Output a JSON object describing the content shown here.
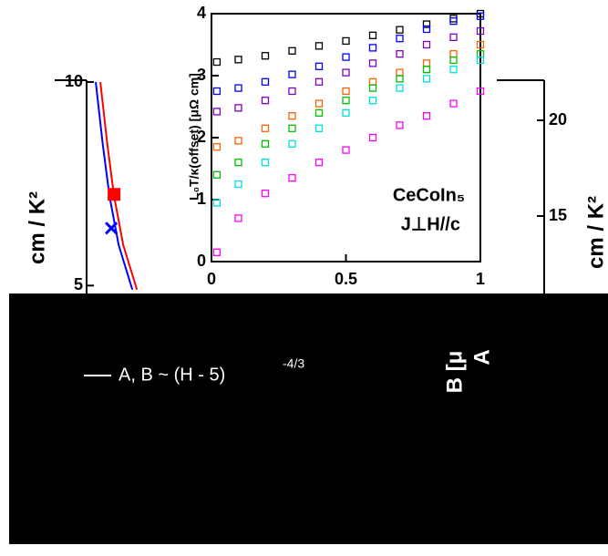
{
  "chart_data": [
    {
      "type": "line",
      "ylabel": "cm / K²",
      "y2label": "cm / K²",
      "xlim": [
        5,
        15
      ],
      "ylim": [
        4.85,
        10
      ],
      "yticks": [
        5,
        10
      ],
      "y2lim": [
        11.05,
        22
      ],
      "y2ticks": [
        15,
        20
      ],
      "series": [
        {
          "color": "#ff0000",
          "x": [
            5.3,
            5.45,
            5.6,
            5.8,
            6.1
          ],
          "values": [
            10,
            8.5,
            7.2,
            6.0,
            4.9
          ]
        },
        {
          "color": "#0000ff",
          "x": [
            5.2,
            5.35,
            5.5,
            5.7,
            6.0
          ],
          "values": [
            10,
            8.5,
            7.2,
            6.0,
            4.9
          ]
        }
      ],
      "points": [
        {
          "color": "#ff0000",
          "marker": "square",
          "x": [
            5.6
          ],
          "values": [
            7.24
          ]
        },
        {
          "color": "#0000ff",
          "marker": "x",
          "x": [
            5.54
          ],
          "values": [
            6.41
          ]
        }
      ],
      "annotation": "A, B ~ (H - 5)",
      "annotation_exponent": "-4/3",
      "side_labels": [
        "B [μ",
        "A"
      ]
    },
    {
      "type": "scatter",
      "ylabel": "L₀T/κ(offset) [μΩ cm]",
      "annotations": [
        "CeCoIn₅",
        "J⊥H//c"
      ],
      "xlim": [
        0,
        1
      ],
      "xticks": [
        0,
        0.5,
        1
      ],
      "ylim": [
        0,
        4
      ],
      "yticks": [
        0,
        1,
        2,
        3,
        4
      ],
      "x": [
        0.02,
        0.1,
        0.2,
        0.3,
        0.4,
        0.5,
        0.6,
        0.7,
        0.8,
        0.9,
        1.0
      ],
      "series": [
        {
          "color": "#000000",
          "values": [
            3.22,
            3.26,
            3.32,
            3.4,
            3.48,
            3.56,
            3.65,
            3.74,
            3.83,
            3.92,
            4.0
          ]
        },
        {
          "color": "#0000ff",
          "values": [
            2.75,
            2.8,
            2.9,
            3.02,
            3.15,
            3.3,
            3.45,
            3.6,
            3.75,
            3.88,
            3.96
          ]
        },
        {
          "color": "#8000c0",
          "values": [
            2.42,
            2.48,
            2.6,
            2.75,
            2.9,
            3.05,
            3.2,
            3.35,
            3.5,
            3.62,
            3.72
          ]
        },
        {
          "color": "#ff6000",
          "values": [
            1.85,
            1.95,
            2.15,
            2.35,
            2.55,
            2.75,
            2.9,
            3.05,
            3.2,
            3.35,
            3.5
          ]
        },
        {
          "color": "#00c000",
          "values": [
            1.4,
            1.6,
            1.9,
            2.15,
            2.4,
            2.6,
            2.8,
            2.95,
            3.1,
            3.25,
            3.35
          ]
        },
        {
          "color": "#00e0e0",
          "values": [
            0.95,
            1.25,
            1.6,
            1.9,
            2.15,
            2.4,
            2.6,
            2.8,
            2.95,
            3.1,
            3.25
          ]
        },
        {
          "color": "#ff00ff",
          "values": [
            0.15,
            0.7,
            1.1,
            1.35,
            1.6,
            1.8,
            2.0,
            2.2,
            2.35,
            2.55,
            2.75
          ]
        }
      ]
    }
  ]
}
